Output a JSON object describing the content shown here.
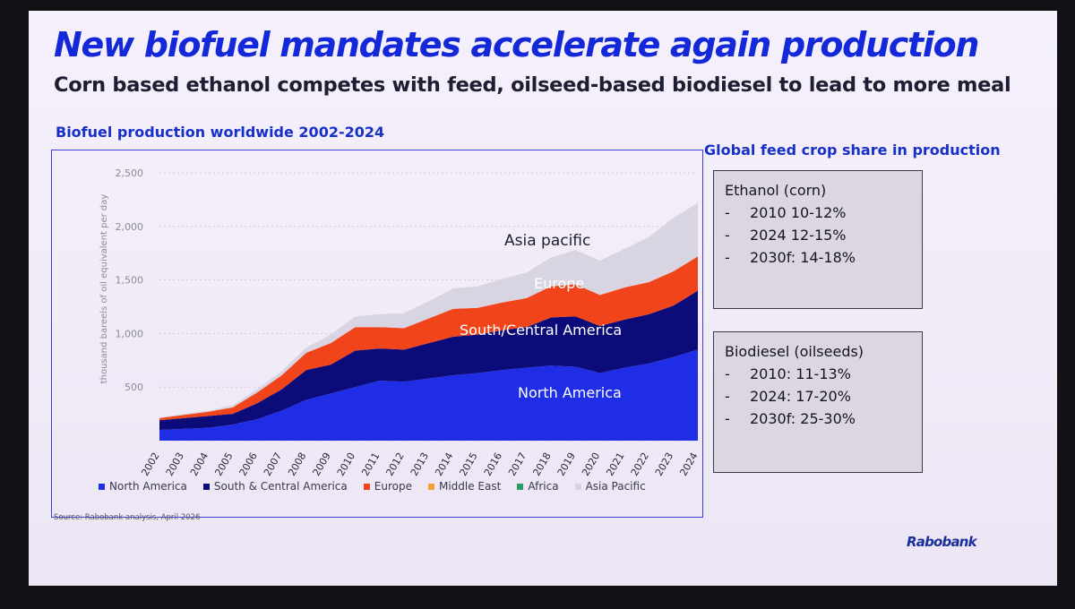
{
  "slide": {
    "title": "New biofuel mandates accelerate again production",
    "subtitle": "Corn based ethanol competes with feed, oilseed-based biodiesel to lead to more meal",
    "source": "Source: Rabobank analysis, April 2026",
    "logo": "Rabobank"
  },
  "side_panel": {
    "title": "Global feed crop share in production",
    "boxes": [
      {
        "heading": "Ethanol (corn)",
        "items": [
          {
            "bullet": "-",
            "text": "2010 10-12%"
          },
          {
            "bullet": "-",
            "text": "2024 12-15%"
          },
          {
            "bullet": "-",
            "text": "2030f: 14-18%"
          }
        ]
      },
      {
        "heading": "Biodiesel (oilseeds)",
        "items": [
          {
            "bullet": "-",
            "text": "2010: 11-13%"
          },
          {
            "bullet": "-",
            "text": "2024: 17-20%"
          },
          {
            "bullet": "-",
            "text": "2030f: 25-30%"
          }
        ]
      }
    ]
  },
  "colors": {
    "north_america": "#1f2ee6",
    "south_central_america": "#0c0b7a",
    "europe": "#f2441a",
    "middle_east": "#f3a23a",
    "africa": "#2e9a6a",
    "asia_pacific": "#d9d4e1"
  },
  "chart_data": {
    "type": "area",
    "stacked": true,
    "title": "Biofuel production worldwide 2002-2024",
    "ylabel": "thousand bareels of oil equivalent per day",
    "xlabel": "",
    "ylim": [
      0,
      2500
    ],
    "yticks": [
      "2,500",
      "2,000",
      "1,500",
      "1,000",
      "500",
      ""
    ],
    "ytick_values": [
      2500,
      2000,
      1500,
      1000,
      500,
      0
    ],
    "grid": true,
    "legend_position": "bottom",
    "x": [
      "2002",
      "2003",
      "2004",
      "2005",
      "2006",
      "2007",
      "2008",
      "2009",
      "2010",
      "2011",
      "2012",
      "2013",
      "2014",
      "2015",
      "2016",
      "2017",
      "2018",
      "2019",
      "2020",
      "2021",
      "2022",
      "2023",
      "2024"
    ],
    "series": [
      {
        "name": "North America",
        "color": "#1f2ee6",
        "values": [
          100,
          110,
          120,
          150,
          200,
          280,
          380,
          440,
          500,
          560,
          550,
          580,
          610,
          630,
          660,
          680,
          700,
          690,
          630,
          680,
          720,
          780,
          850
        ]
      },
      {
        "name": "South & Central America",
        "color": "#0c0b7a",
        "values": [
          90,
          100,
          110,
          100,
          150,
          200,
          280,
          270,
          340,
          300,
          300,
          330,
          360,
          360,
          370,
          380,
          450,
          470,
          440,
          450,
          460,
          480,
          550
        ]
      },
      {
        "name": "Europe",
        "color": "#f2441a",
        "values": [
          20,
          30,
          40,
          60,
          100,
          130,
          160,
          200,
          220,
          200,
          200,
          230,
          260,
          250,
          260,
          270,
          290,
          300,
          290,
          300,
          300,
          320,
          320
        ]
      },
      {
        "name": "Middle East",
        "color": "#f3a23a",
        "values": [
          0,
          0,
          0,
          0,
          0,
          0,
          0,
          0,
          0,
          0,
          0,
          0,
          0,
          0,
          0,
          0,
          0,
          0,
          0,
          0,
          0,
          0,
          0
        ]
      },
      {
        "name": "Africa",
        "color": "#2e9a6a",
        "values": [
          0,
          0,
          0,
          0,
          0,
          0,
          0,
          0,
          0,
          0,
          0,
          0,
          0,
          0,
          0,
          0,
          0,
          0,
          0,
          0,
          0,
          0,
          0
        ]
      },
      {
        "name": "Asia Pacific",
        "color": "#d9d4e1",
        "values": [
          5,
          10,
          10,
          20,
          30,
          40,
          50,
          80,
          100,
          120,
          140,
          160,
          190,
          200,
          220,
          240,
          270,
          320,
          320,
          360,
          420,
          500,
          500
        ]
      }
    ],
    "annotations": [
      {
        "text": "Asia pacific",
        "color": "#1d1d33"
      },
      {
        "text": "Europe",
        "color": "#ffffff"
      },
      {
        "text": "South/Central America",
        "color": "#ffffff"
      },
      {
        "text": "North America",
        "color": "#ffffff"
      }
    ]
  }
}
